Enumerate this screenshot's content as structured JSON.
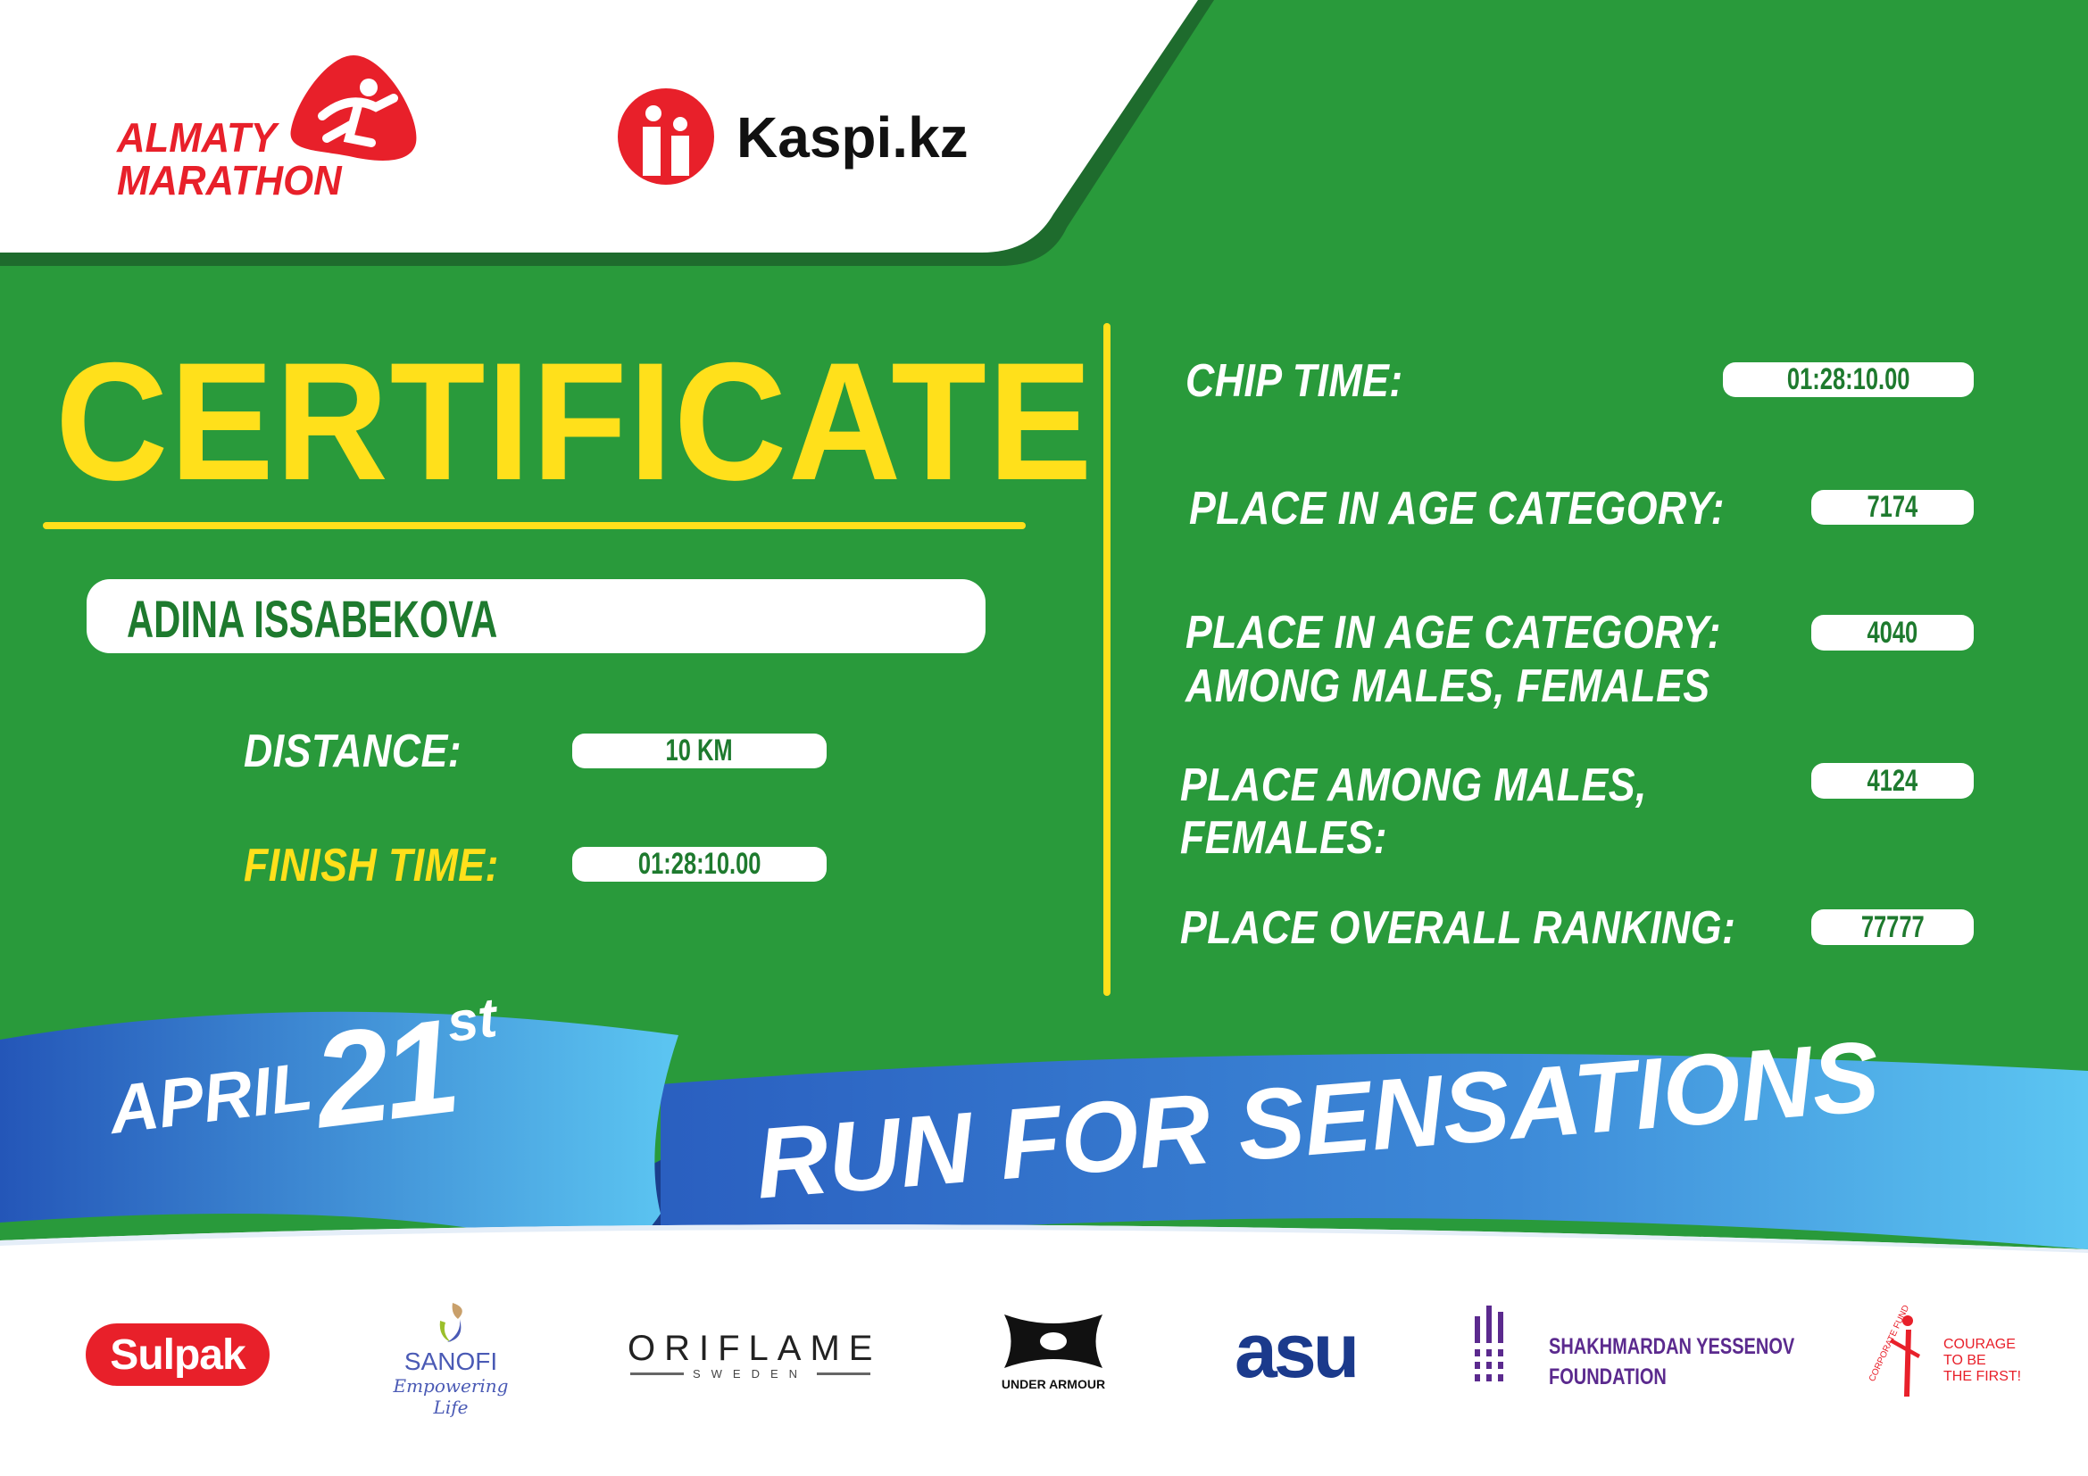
{
  "colors": {
    "green": "#299a3b",
    "dark_green": "#1e6b2d",
    "yellow": "#ffe01b",
    "red": "#e8202a",
    "blue": "#2f6fcb",
    "light_blue": "#58c2f0"
  },
  "header": {
    "event_logo": {
      "line1": "ALMATY",
      "line2": "MARATHON",
      "icon": "runner-icon"
    },
    "sponsor_logo": {
      "name": "Kaspi.kz",
      "icon": "kaspi-people-icon"
    }
  },
  "certificate": {
    "title": "CERTIFICATE",
    "participant_name": "ADINA ISSABEKOVA",
    "distance_label": "DISTANCE:",
    "distance_value": "10 KM",
    "finish_time_label": "FINISH TIME:",
    "finish_time_value": "01:28:10.00"
  },
  "results": [
    {
      "label_lines": [
        "CHIP TIME:"
      ],
      "value": "01:28:10.00"
    },
    {
      "label_lines": [
        "PLACE IN AGE CATEGORY:"
      ],
      "value": "7174"
    },
    {
      "label_lines": [
        "PLACE IN AGE CATEGORY:",
        "AMONG MALES, FEMALES"
      ],
      "value": "4040"
    },
    {
      "label_lines": [
        "PLACE AMONG MALES,",
        "FEMALES:"
      ],
      "value": "4124"
    },
    {
      "label_lines": [
        "PLACE OVERALL RANKING:"
      ],
      "value": "77777"
    }
  ],
  "ribbon": {
    "month": "APRIL",
    "day": "21",
    "suffix": "st",
    "slogan": "RUN FOR SENSATIONS"
  },
  "partners": [
    {
      "name": "Sulpak"
    },
    {
      "name": "SANOFI",
      "tagline": "Empowering Life"
    },
    {
      "name": "ORIFLAME",
      "tagline": "SWEDEN"
    },
    {
      "name": "UNDER ARMOUR"
    },
    {
      "name": "asu"
    },
    {
      "name": "SHAKHMARDAN YESSENOV",
      "tagline": "FOUNDATION"
    },
    {
      "name": "CORPORATE FUND",
      "tagline_lines": [
        "COURAGE",
        "TO BE",
        "THE FIRST!"
      ]
    }
  ]
}
